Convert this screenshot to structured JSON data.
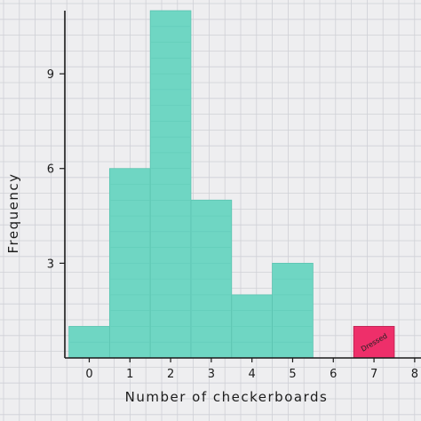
{
  "chart_data": {
    "type": "bar",
    "title": "",
    "xlabel": "Number of checkerboards",
    "ylabel": "Frequency",
    "x_ticks": [
      "0",
      "1",
      "2",
      "3",
      "4",
      "5",
      "6",
      "7",
      "8"
    ],
    "y_ticks": [
      "3",
      "6",
      "9"
    ],
    "ylim": [
      0,
      11
    ],
    "xlim": [
      -0.6,
      8
    ],
    "grid": true,
    "bins": [
      {
        "x": 0,
        "value": 1
      },
      {
        "x": 1,
        "value": 6
      },
      {
        "x": 2,
        "value": 11
      },
      {
        "x": 3,
        "value": 5
      },
      {
        "x": 4,
        "value": 2
      },
      {
        "x": 5,
        "value": 3
      },
      {
        "x": 7,
        "value": 1
      }
    ],
    "highlight": {
      "x": 7,
      "label": "Dressed",
      "color": "#ee2f6a"
    },
    "bar_color": "#6fd6c3"
  }
}
